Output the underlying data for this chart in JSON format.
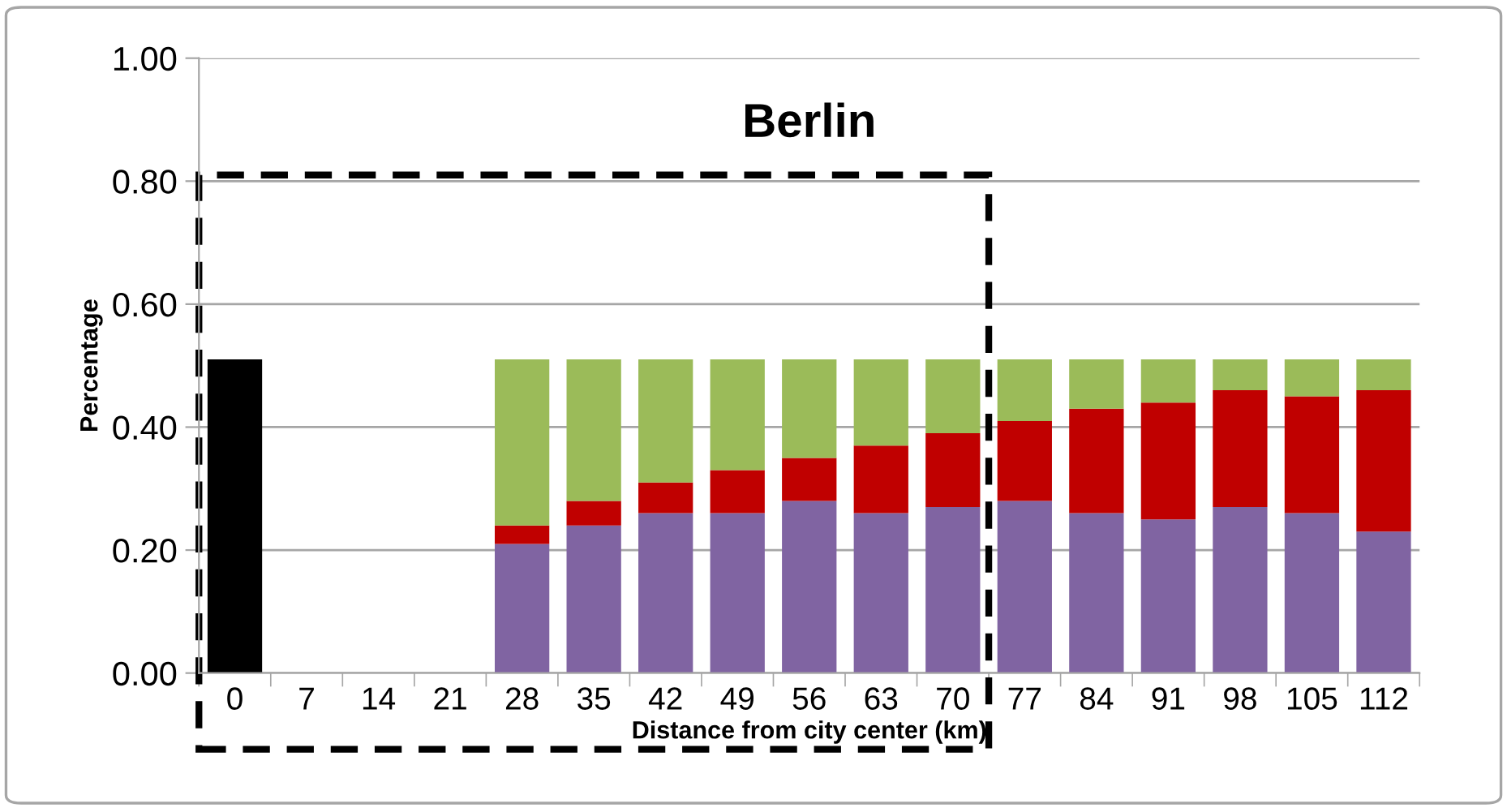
{
  "chart_data": {
    "type": "bar",
    "title": "Berlin",
    "xlabel": "Distance from city center (km)",
    "ylabel": "Percentage",
    "categories": [
      "0",
      "7",
      "14",
      "21",
      "28",
      "35",
      "42",
      "49",
      "56",
      "63",
      "70",
      "77",
      "84",
      "91",
      "98",
      "105",
      "112"
    ],
    "stacked": true,
    "series": [
      {
        "color": "#000000",
        "values": [
          0.51,
          null,
          null,
          null,
          null,
          null,
          null,
          null,
          null,
          null,
          null,
          null,
          null,
          null,
          null,
          null,
          null
        ]
      },
      {
        "color": "#8064a2",
        "values": [
          null,
          null,
          null,
          null,
          0.21,
          0.24,
          0.26,
          0.26,
          0.28,
          0.26,
          0.27,
          0.28,
          0.26,
          0.25,
          0.27,
          0.26,
          0.23
        ]
      },
      {
        "color": "#c00000",
        "values": [
          null,
          null,
          null,
          null,
          0.03,
          0.04,
          0.05,
          0.07,
          0.07,
          0.11,
          0.12,
          0.13,
          0.17,
          0.19,
          0.19,
          0.19,
          0.23
        ]
      },
      {
        "color": "#9bbb59",
        "values": [
          null,
          null,
          null,
          null,
          0.27,
          0.23,
          0.2,
          0.18,
          0.16,
          0.14,
          0.12,
          0.1,
          0.08,
          0.07,
          0.05,
          0.06,
          0.05
        ]
      }
    ],
    "ylim": [
      0,
      1
    ],
    "yticks": [
      {
        "value": 0,
        "label": "0.00"
      },
      {
        "value": 0.2,
        "label": "0.20"
      },
      {
        "value": 0.4,
        "label": "0.40"
      },
      {
        "value": 0.6,
        "label": "0.60"
      },
      {
        "value": 0.8,
        "label": "0.80"
      },
      {
        "value": 1,
        "label": "1.00"
      }
    ],
    "grid": "y"
  }
}
